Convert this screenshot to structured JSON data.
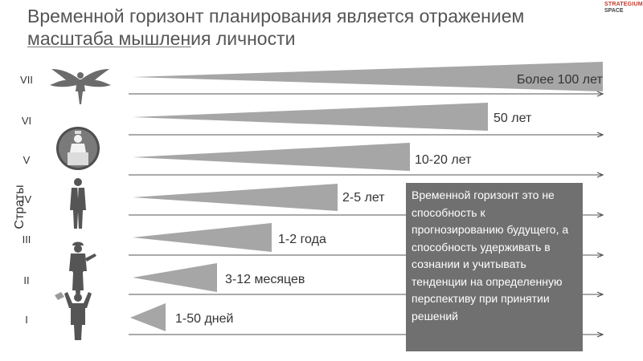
{
  "title": "Временной горизонт планирования является отражением масштаба мышления личности",
  "logo": {
    "line1": "STRATEGIUM",
    "line2": "SPACE"
  },
  "axis_label": "Страты",
  "strata": [
    {
      "numeral": "I",
      "horizon": "1-50 дней",
      "figure": "worker-arms-up-icon"
    },
    {
      "numeral": "II",
      "horizon": "3-12 месяцев",
      "figure": "worker-with-tools-icon"
    },
    {
      "numeral": "III",
      "horizon": "1-2 года",
      "figure": "worker-hardhat-icon"
    },
    {
      "numeral": "IV",
      "horizon": "2-5 лет",
      "figure": "businessman-suit-icon"
    },
    {
      "numeral": "V",
      "horizon": "10-20 лет",
      "figure": "speaker-podium-icon"
    },
    {
      "numeral": "VI",
      "horizon": "50 лет",
      "figure": "speaker-podium-icon"
    },
    {
      "numeral": "VII",
      "horizon": "Более 100 лет",
      "figure": "winged-angel-icon"
    }
  ],
  "note": "Временной горизонт это не способность к прогнозированию будущего, а способность удерживать в сознании и учитывать тенденции на определенную перспективу при принятии решений",
  "colors": {
    "wedge": "#a6a6a6",
    "box": "#707070",
    "arrow": "#555555"
  }
}
